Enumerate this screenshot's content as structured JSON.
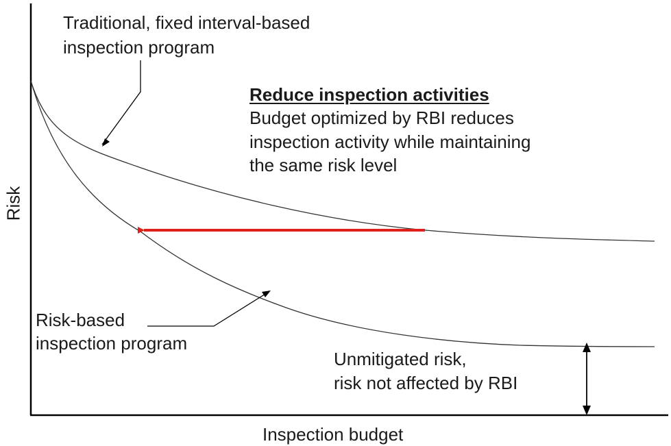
{
  "axes": {
    "x_label": "Inspection budget",
    "y_label": "Risk"
  },
  "traditional_label": {
    "line1": "Traditional, fixed interval-based",
    "line2": "inspection program"
  },
  "rbi_label": {
    "line1": "Risk-based",
    "line2": "inspection program"
  },
  "reduce_note": {
    "title": "Reduce inspection activities",
    "line1": "Budget optimized by RBI reduces",
    "line2": "inspection activity while maintaining",
    "line3": "the same risk level"
  },
  "unmitigated_note": {
    "line1": "Unmitigated risk,",
    "line2": "risk not affected by RBI"
  },
  "colors": {
    "curve": "#333333",
    "axis": "#000000",
    "arrow": "#e0201a",
    "text": "#1a1a1a"
  }
}
